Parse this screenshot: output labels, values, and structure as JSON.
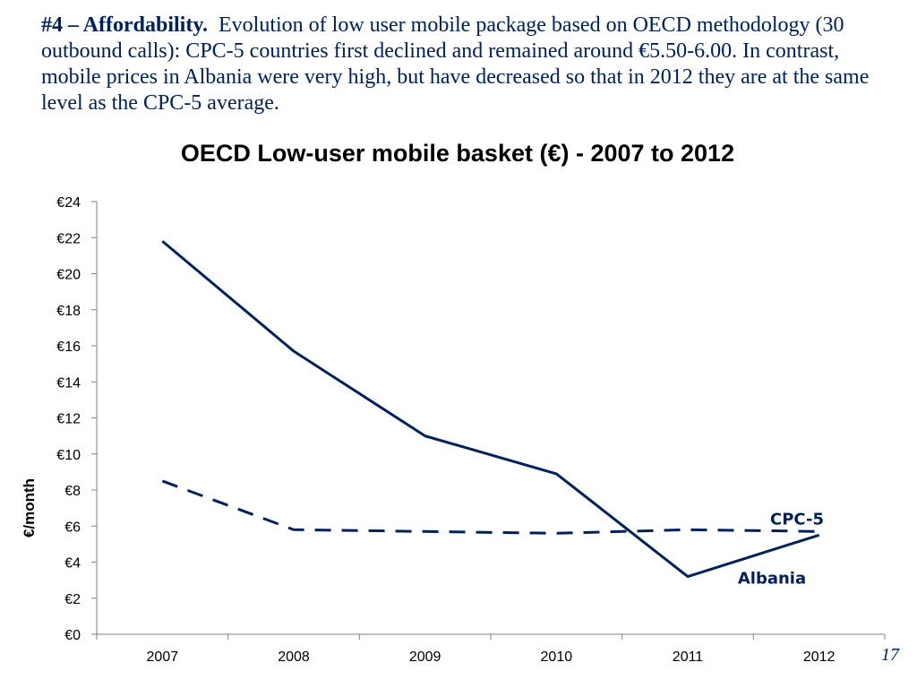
{
  "intro": {
    "lead": "#4 – Affordability.",
    "text": "Evolution of low user mobile package based on OECD methodology (30 outbound calls): CPC-5 countries first declined and remained around €5.50-6.00.  In contrast, mobile prices in Albania were very high, but have decreased so that in 2012 they are at the same level as the CPC-5 average."
  },
  "chart_data": {
    "type": "line",
    "title": "OECD Low-user mobile basket (€) - 2007 to 2012",
    "xlabel": "",
    "ylabel": "€/month",
    "categories": [
      "2007",
      "2008",
      "2009",
      "2010",
      "2011",
      "2012"
    ],
    "ylim": [
      0,
      24
    ],
    "y_ticks": [
      0,
      2,
      4,
      6,
      8,
      10,
      12,
      14,
      16,
      18,
      20,
      22,
      24
    ],
    "y_tick_labels": [
      "€0",
      "€2",
      "€4",
      "€6",
      "€8",
      "€10",
      "€12",
      "€14",
      "€16",
      "€18",
      "€20",
      "€22",
      "€24"
    ],
    "grid": false,
    "legend": "inline labels at right end of lines",
    "series": [
      {
        "name": "Albania",
        "values": [
          21.8,
          15.7,
          11.0,
          8.9,
          3.2,
          5.5
        ],
        "color": "#002060",
        "style": "solid"
      },
      {
        "name": "CPC-5",
        "values": [
          8.5,
          5.8,
          5.7,
          5.6,
          5.8,
          5.7
        ],
        "color": "#002060",
        "style": "dashed"
      }
    ]
  },
  "page_number": "17"
}
